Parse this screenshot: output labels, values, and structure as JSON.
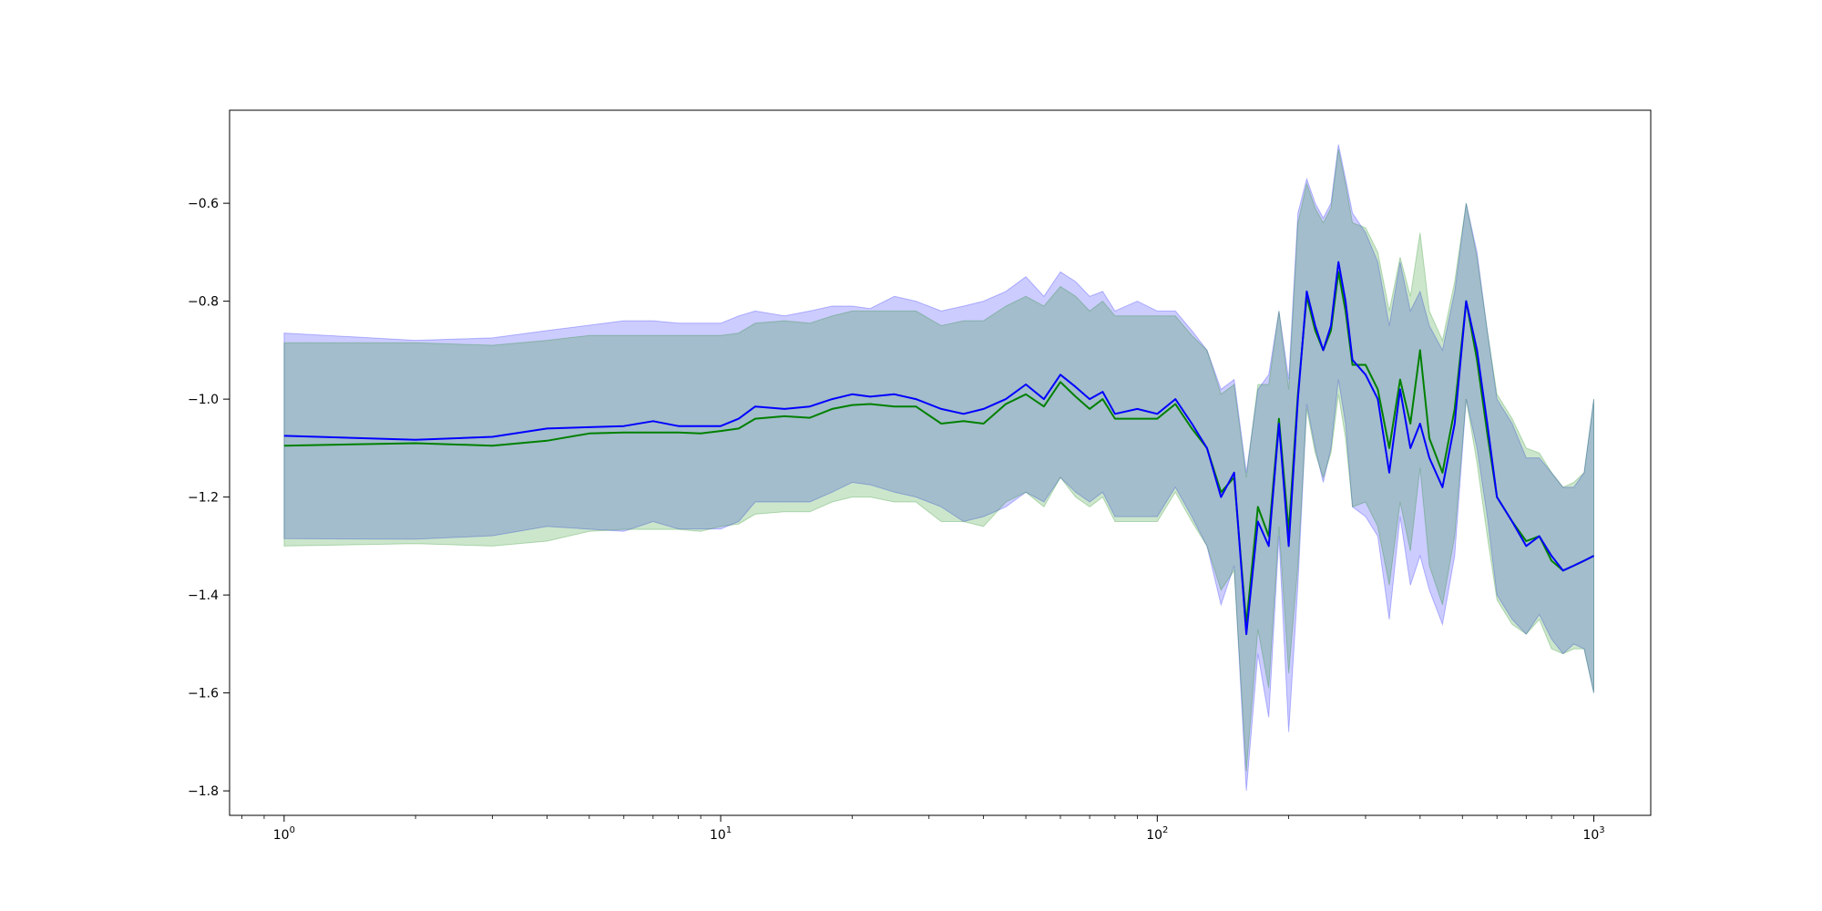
{
  "chart_data": {
    "type": "line",
    "title": "",
    "xlabel": "",
    "ylabel": "",
    "xscale": "log",
    "xlim": [
      0.75,
      1350
    ],
    "ylim": [
      -1.85,
      -0.41
    ],
    "grid": false,
    "legend": "none",
    "x_ticks": [
      {
        "value": 1,
        "base": "10",
        "exp": "0"
      },
      {
        "value": 10,
        "base": "10",
        "exp": "1"
      },
      {
        "value": 100,
        "base": "10",
        "exp": "2"
      },
      {
        "value": 1000,
        "base": "10",
        "exp": "3"
      }
    ],
    "y_ticks": [
      {
        "value": -0.6,
        "label": "−0.6"
      },
      {
        "value": -0.8,
        "label": "−0.8"
      },
      {
        "value": -1.0,
        "label": "−1.0"
      },
      {
        "value": -1.2,
        "label": "−1.2"
      },
      {
        "value": -1.4,
        "label": "−1.4"
      },
      {
        "value": -1.6,
        "label": "−1.6"
      },
      {
        "value": -1.8,
        "label": "−1.8"
      }
    ],
    "series": [
      {
        "color": "#0000ff",
        "band_color": "#0000ff",
        "band_opacity": 0.2,
        "x": [
          1,
          2,
          3,
          4,
          6,
          7,
          8,
          10,
          11,
          12,
          14,
          16,
          18,
          20,
          22,
          25,
          28,
          32,
          36,
          40,
          45,
          50,
          55,
          60,
          65,
          70,
          75,
          80,
          90,
          100,
          110,
          120,
          130,
          140,
          150,
          160,
          170,
          180,
          190,
          200,
          210,
          220,
          230,
          240,
          250,
          260,
          270,
          280,
          300,
          320,
          340,
          360,
          380,
          400,
          420,
          450,
          480,
          510,
          540,
          570,
          600,
          650,
          700,
          750,
          800,
          850,
          900,
          950,
          1000
        ],
        "y": [
          -1.075,
          -1.083,
          -1.077,
          -1.06,
          -1.055,
          -1.045,
          -1.055,
          -1.055,
          -1.04,
          -1.015,
          -1.02,
          -1.015,
          -1.0,
          -0.99,
          -0.995,
          -0.99,
          -1.0,
          -1.02,
          -1.03,
          -1.02,
          -1.0,
          -0.97,
          -1.0,
          -0.95,
          -0.975,
          -1.0,
          -0.985,
          -1.03,
          -1.02,
          -1.03,
          -1.0,
          -1.05,
          -1.1,
          -1.2,
          -1.15,
          -1.48,
          -1.25,
          -1.3,
          -1.05,
          -1.3,
          -1.0,
          -0.78,
          -0.85,
          -0.9,
          -0.85,
          -0.72,
          -0.8,
          -0.92,
          -0.95,
          -1.0,
          -1.15,
          -0.98,
          -1.1,
          -1.05,
          -1.12,
          -1.18,
          -1.05,
          -0.8,
          -0.9,
          -1.05,
          -1.2,
          -1.25,
          -1.3,
          -1.28,
          -1.32,
          -1.35,
          -1.34,
          -1.33,
          -1.32
        ],
        "upper": [
          -0.865,
          -0.88,
          -0.875,
          -0.86,
          -0.84,
          -0.84,
          -0.845,
          -0.845,
          -0.83,
          -0.82,
          -0.83,
          -0.82,
          -0.81,
          -0.81,
          -0.815,
          -0.79,
          -0.8,
          -0.82,
          -0.81,
          -0.8,
          -0.78,
          -0.75,
          -0.79,
          -0.74,
          -0.76,
          -0.79,
          -0.78,
          -0.82,
          -0.8,
          -0.82,
          -0.82,
          -0.86,
          -0.9,
          -0.98,
          -0.96,
          -1.15,
          -0.98,
          -0.95,
          -0.82,
          -0.96,
          -0.62,
          -0.55,
          -0.6,
          -0.63,
          -0.6,
          -0.48,
          -0.55,
          -0.62,
          -0.66,
          -0.72,
          -0.85,
          -0.72,
          -0.82,
          -0.78,
          -0.85,
          -0.9,
          -0.78,
          -0.6,
          -0.7,
          -0.86,
          -1.0,
          -1.05,
          -1.12,
          -1.12,
          -1.15,
          -1.18,
          -1.18,
          -1.15,
          -1.0
        ],
        "lower": [
          -1.285,
          -1.286,
          -1.279,
          -1.26,
          -1.27,
          -1.25,
          -1.265,
          -1.265,
          -1.25,
          -1.21,
          -1.21,
          -1.21,
          -1.19,
          -1.17,
          -1.175,
          -1.19,
          -1.2,
          -1.22,
          -1.25,
          -1.24,
          -1.22,
          -1.19,
          -1.21,
          -1.16,
          -1.19,
          -1.21,
          -1.19,
          -1.24,
          -1.24,
          -1.24,
          -1.18,
          -1.24,
          -1.3,
          -1.42,
          -1.34,
          -1.8,
          -1.52,
          -1.65,
          -1.28,
          -1.68,
          -1.38,
          -1.01,
          -1.1,
          -1.17,
          -1.1,
          -0.96,
          -1.05,
          -1.22,
          -1.24,
          -1.28,
          -1.45,
          -1.24,
          -1.38,
          -1.32,
          -1.39,
          -1.46,
          -1.32,
          -1.0,
          -1.1,
          -1.24,
          -1.4,
          -1.45,
          -1.48,
          -1.44,
          -1.49,
          -1.52,
          -1.5,
          -1.51,
          -1.6
        ]
      },
      {
        "color": "#008000",
        "band_color": "#008000",
        "band_opacity": 0.2,
        "x": [
          1,
          2,
          3,
          4,
          5,
          6,
          7,
          8,
          9,
          10,
          11,
          12,
          14,
          16,
          18,
          20,
          22,
          25,
          28,
          32,
          36,
          40,
          45,
          50,
          55,
          60,
          65,
          70,
          75,
          80,
          90,
          100,
          110,
          120,
          130,
          140,
          150,
          160,
          170,
          180,
          190,
          200,
          210,
          220,
          230,
          240,
          250,
          260,
          270,
          280,
          300,
          320,
          340,
          360,
          380,
          400,
          420,
          450,
          480,
          510,
          540,
          570,
          600,
          650,
          700,
          750,
          800,
          850,
          900,
          950,
          1000
        ],
        "y": [
          -1.095,
          -1.09,
          -1.095,
          -1.085,
          -1.07,
          -1.068,
          -1.068,
          -1.068,
          -1.07,
          -1.065,
          -1.06,
          -1.04,
          -1.035,
          -1.038,
          -1.02,
          -1.012,
          -1.01,
          -1.015,
          -1.015,
          -1.05,
          -1.045,
          -1.05,
          -1.01,
          -0.99,
          -1.015,
          -0.965,
          -0.995,
          -1.02,
          -1.0,
          -1.04,
          -1.04,
          -1.04,
          -1.01,
          -1.06,
          -1.1,
          -1.19,
          -1.16,
          -1.46,
          -1.22,
          -1.28,
          -1.04,
          -1.27,
          -0.99,
          -0.79,
          -0.86,
          -0.9,
          -0.86,
          -0.74,
          -0.82,
          -0.93,
          -0.93,
          -0.98,
          -1.1,
          -0.96,
          -1.05,
          -0.9,
          -1.08,
          -1.15,
          -1.02,
          -0.8,
          -0.92,
          -1.07,
          -1.2,
          -1.25,
          -1.29,
          -1.28,
          -1.33,
          -1.35,
          -1.34,
          -1.33,
          -1.32
        ],
        "upper": [
          -0.885,
          -0.885,
          -0.89,
          -0.88,
          -0.87,
          -0.87,
          -0.87,
          -0.87,
          -0.87,
          -0.87,
          -0.865,
          -0.845,
          -0.84,
          -0.845,
          -0.83,
          -0.82,
          -0.82,
          -0.82,
          -0.82,
          -0.85,
          -0.84,
          -0.84,
          -0.81,
          -0.79,
          -0.81,
          -0.77,
          -0.79,
          -0.82,
          -0.8,
          -0.83,
          -0.83,
          -0.83,
          -0.83,
          -0.87,
          -0.9,
          -0.99,
          -0.97,
          -1.16,
          -0.97,
          -0.97,
          -0.82,
          -0.98,
          -0.64,
          -0.56,
          -0.61,
          -0.64,
          -0.61,
          -0.49,
          -0.56,
          -0.64,
          -0.65,
          -0.7,
          -0.82,
          -0.71,
          -0.79,
          -0.66,
          -0.82,
          -0.88,
          -0.76,
          -0.6,
          -0.71,
          -0.86,
          -0.99,
          -1.04,
          -1.1,
          -1.11,
          -1.15,
          -1.18,
          -1.17,
          -1.15,
          -1.0
        ],
        "lower": [
          -1.3,
          -1.295,
          -1.3,
          -1.29,
          -1.27,
          -1.266,
          -1.266,
          -1.266,
          -1.27,
          -1.26,
          -1.255,
          -1.235,
          -1.23,
          -1.23,
          -1.21,
          -1.2,
          -1.2,
          -1.21,
          -1.21,
          -1.25,
          -1.25,
          -1.26,
          -1.21,
          -1.19,
          -1.22,
          -1.16,
          -1.2,
          -1.22,
          -1.2,
          -1.25,
          -1.25,
          -1.25,
          -1.19,
          -1.25,
          -1.3,
          -1.39,
          -1.35,
          -1.76,
          -1.47,
          -1.59,
          -1.26,
          -1.56,
          -1.34,
          -1.02,
          -1.11,
          -1.16,
          -1.11,
          -0.99,
          -1.08,
          -1.22,
          -1.21,
          -1.26,
          -1.38,
          -1.21,
          -1.31,
          -1.14,
          -1.34,
          -1.42,
          -1.28,
          -1.0,
          -1.13,
          -1.28,
          -1.41,
          -1.46,
          -1.48,
          -1.45,
          -1.51,
          -1.52,
          -1.51,
          -1.51,
          -1.6
        ]
      }
    ]
  }
}
